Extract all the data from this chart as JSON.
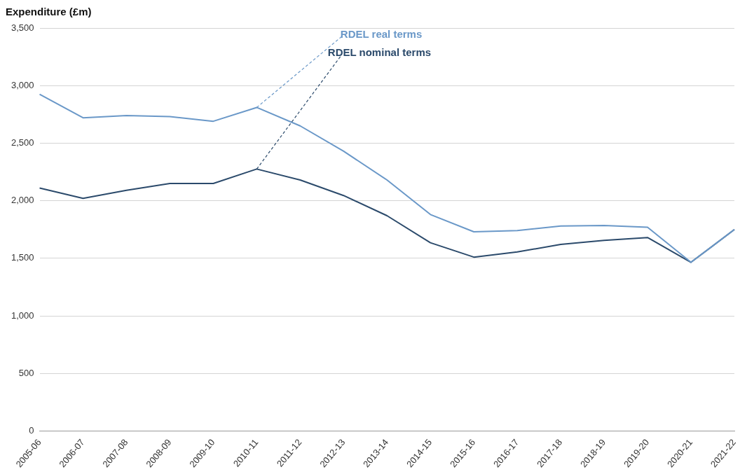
{
  "chart_data": {
    "type": "line",
    "ylabel": "Expenditure (£m)",
    "categories": [
      "2005-06",
      "2006-07",
      "2007-08",
      "2008-09",
      "2009-10",
      "2010-11",
      "2011-12",
      "2012-13",
      "2013-14",
      "2014-15",
      "2015-16",
      "2016-17",
      "2017-18",
      "2018-19",
      "2019-20",
      "2020-21",
      "2021-22"
    ],
    "series": [
      {
        "name": "RDEL real terms",
        "color": "#6a98c8",
        "values": [
          2925,
          2720,
          2740,
          2730,
          2690,
          2810,
          2650,
          2430,
          2180,
          1880,
          1730,
          1740,
          1780,
          1785,
          1770,
          1465,
          1750
        ]
      },
      {
        "name": "RDEL nominal terms",
        "color": "#2b4a6b",
        "values": [
          2110,
          2020,
          2090,
          2150,
          2150,
          2275,
          2180,
          2045,
          1870,
          1635,
          1510,
          1555,
          1620,
          1655,
          1680,
          1465,
          1750
        ]
      }
    ],
    "ylim": [
      0,
      3500
    ],
    "yticks": [
      {
        "value": 0,
        "label": "0"
      },
      {
        "value": 500,
        "label": "500"
      },
      {
        "value": 1000,
        "label": "1,000"
      },
      {
        "value": 1500,
        "label": "1,500"
      },
      {
        "value": 2000,
        "label": "2,000"
      },
      {
        "value": 2500,
        "label": "2,500"
      },
      {
        "value": 3000,
        "label": "3,000"
      },
      {
        "value": 3500,
        "label": "3,500"
      }
    ],
    "grid": "y",
    "marker": "none",
    "line_style": "solid",
    "legend": false
  }
}
